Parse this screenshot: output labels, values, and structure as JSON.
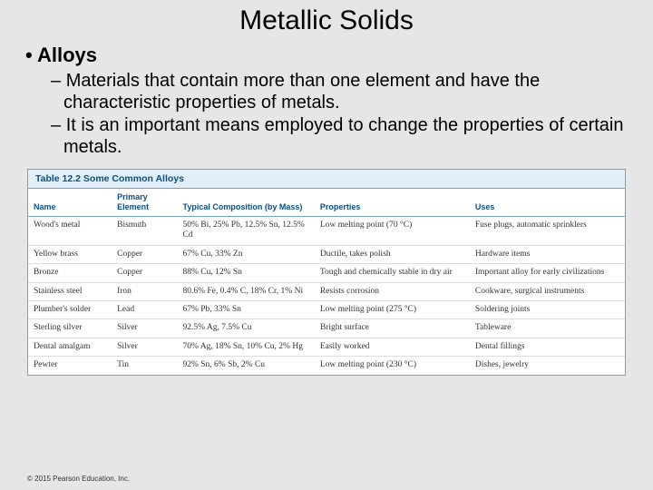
{
  "title": "Metallic Solids",
  "bullet_main": "Alloys",
  "sub_bullets": [
    "Materials that contain more than one element and have the characteristic properties of metals.",
    "It is an important means employed to change the properties of certain metals."
  ],
  "table": {
    "caption_num": "Table 12.2",
    "caption_title": "Some Common Alloys",
    "headers": {
      "name": "Name",
      "element": "Primary Element",
      "comp": "Typical Composition (by Mass)",
      "prop": "Properties",
      "uses": "Uses"
    },
    "rows": [
      {
        "name": "Wood's metal",
        "element": "Bismuth",
        "comp": "50% Bi, 25% Pb, 12.5% Sn, 12.5% Cd",
        "prop": "Low melting point (70 °C)",
        "uses": "Fuse plugs, automatic sprinklers"
      },
      {
        "name": "Yellow brass",
        "element": "Copper",
        "comp": "67% Cu, 33% Zn",
        "prop": "Ductile, takes polish",
        "uses": "Hardware items"
      },
      {
        "name": "Bronze",
        "element": "Copper",
        "comp": "88% Cu, 12% Sn",
        "prop": "Tough and chemically stable in dry air",
        "uses": "Important alloy for early civilizations"
      },
      {
        "name": "Stainless steel",
        "element": "Iron",
        "comp": "80.6% Fe, 0.4% C, 18% Cr, 1% Ni",
        "prop": "Resists corrosion",
        "uses": "Cookware, surgical instruments"
      },
      {
        "name": "Plumber's solder",
        "element": "Lead",
        "comp": "67% Pb, 33% Sn",
        "prop": "Low melting point (275 °C)",
        "uses": "Soldering joints"
      },
      {
        "name": "Sterling silver",
        "element": "Silver",
        "comp": "92.5% Ag, 7.5% Cu",
        "prop": "Bright surface",
        "uses": "Tableware"
      },
      {
        "name": "Dental amalgam",
        "element": "Silver",
        "comp": "70% Ag, 18% Sn, 10% Cu, 2% Hg",
        "prop": "Easily worked",
        "uses": "Dental fillings"
      },
      {
        "name": "Pewter",
        "element": "Tin",
        "comp": "92% Sn, 6% Sb, 2% Cu",
        "prop": "Low melting point (230 °C)",
        "uses": "Dishes, jewelry"
      }
    ]
  },
  "copyright": "© 2015 Pearson Education, Inc.",
  "colors": {
    "page_bg": "#e6e6e6",
    "table_header_bg": "#e0effa",
    "table_header_text": "#0b4f84",
    "table_border": "#6fa5c9",
    "row_border": "#dddddd"
  }
}
